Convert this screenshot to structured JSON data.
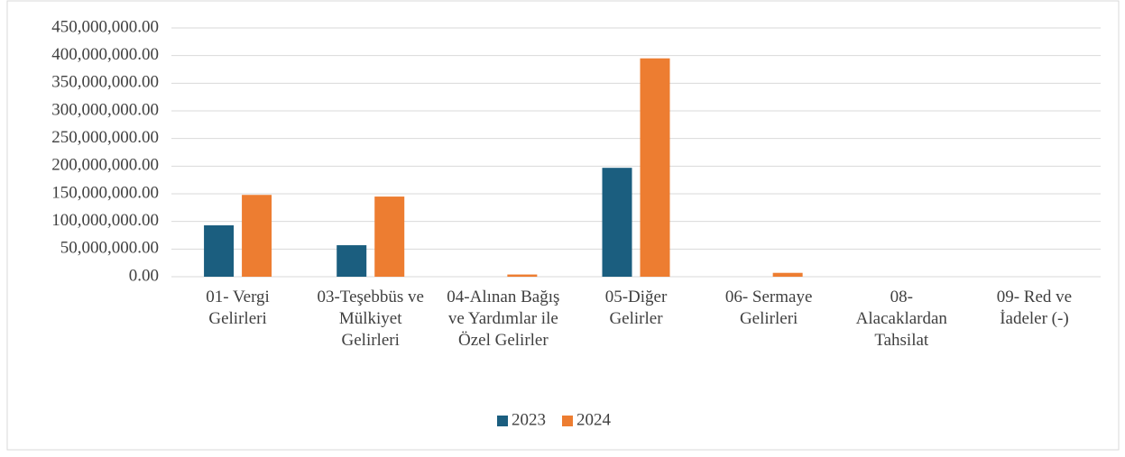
{
  "chart_data": {
    "type": "bar",
    "categories": [
      "01- Vergi Gelirleri",
      "03-Teşebbüs ve Mülkiyet Gelirleri",
      "04-Alınan Bağış ve Yardımlar ile Özel Gelirler",
      "05-Diğer Gelirler",
      "06- Sermaye Gelirleri",
      "08- Alacaklardan Tahsilat",
      "09- Red ve İadeler (-)"
    ],
    "series": [
      {
        "name": "2023",
        "color": "#1b5e7f",
        "values": [
          93000000,
          57000000,
          0,
          197000000,
          0,
          0,
          0
        ]
      },
      {
        "name": "2024",
        "color": "#ed7d31",
        "values": [
          148000000,
          145000000,
          4000000,
          395000000,
          7000000,
          0,
          0
        ]
      }
    ],
    "ylim": [
      0,
      450000000
    ],
    "yticks": [
      {
        "value": 0,
        "label": "0.00"
      },
      {
        "value": 50000000,
        "label": "50,000,000.00"
      },
      {
        "value": 100000000,
        "label": "100,000,000.00"
      },
      {
        "value": 150000000,
        "label": "150,000,000.00"
      },
      {
        "value": 200000000,
        "label": "200,000,000.00"
      },
      {
        "value": 250000000,
        "label": "250,000,000.00"
      },
      {
        "value": 300000000,
        "label": "300,000,000.00"
      },
      {
        "value": 350000000,
        "label": "350,000,000.00"
      },
      {
        "value": 400000000,
        "label": "400,000,000.00"
      },
      {
        "value": 450000000,
        "label": "450,000,000.00"
      }
    ],
    "grid": true,
    "legend": "bottom"
  }
}
